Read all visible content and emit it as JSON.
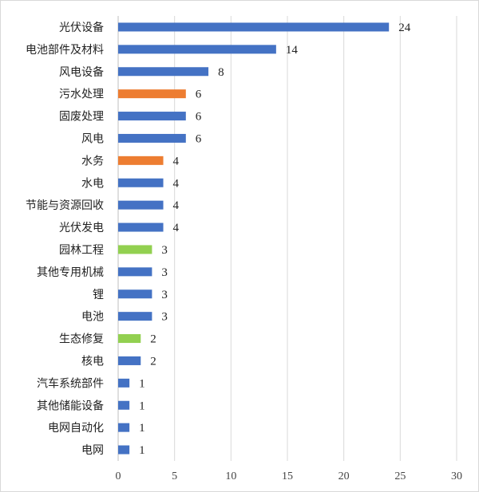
{
  "chart_data": {
    "type": "bar",
    "orientation": "horizontal",
    "categories": [
      "光伏设备",
      "电池部件及材料",
      "风电设备",
      "污水处理",
      "固废处理",
      "风电",
      "水务",
      "水电",
      "节能与资源回收",
      "光伏发电",
      "园林工程",
      "其他专用机械",
      "锂",
      "电池",
      "生态修复",
      "核电",
      "汽车系统部件",
      "其他储能设备",
      "电网自动化",
      "电网"
    ],
    "values": [
      24,
      14,
      8,
      6,
      6,
      6,
      4,
      4,
      4,
      4,
      3,
      3,
      3,
      3,
      2,
      2,
      1,
      1,
      1,
      1
    ],
    "value_labels": [
      "24",
      "14",
      "8",
      "6",
      "6",
      "6",
      "4",
      "4",
      "4",
      "4",
      "3",
      "3",
      "3",
      "3",
      "2",
      "2",
      "1",
      "1",
      "1",
      "1"
    ],
    "bar_colors": [
      "#4472C4",
      "#4472C4",
      "#4472C4",
      "#ED7D31",
      "#4472C4",
      "#4472C4",
      "#ED7D31",
      "#4472C4",
      "#4472C4",
      "#4472C4",
      "#92D050",
      "#4472C4",
      "#4472C4",
      "#4472C4",
      "#92D050",
      "#4472C4",
      "#4472C4",
      "#4472C4",
      "#4472C4",
      "#4472C4"
    ],
    "xlim": [
      0,
      30
    ],
    "x_ticks": [
      0,
      5,
      10,
      15,
      20,
      25,
      30
    ],
    "x_tick_labels": [
      "0",
      "5",
      "10",
      "15",
      "20",
      "25",
      "30"
    ],
    "grid": "vertical",
    "legend": "none",
    "title": "",
    "xlabel": "",
    "ylabel": ""
  }
}
